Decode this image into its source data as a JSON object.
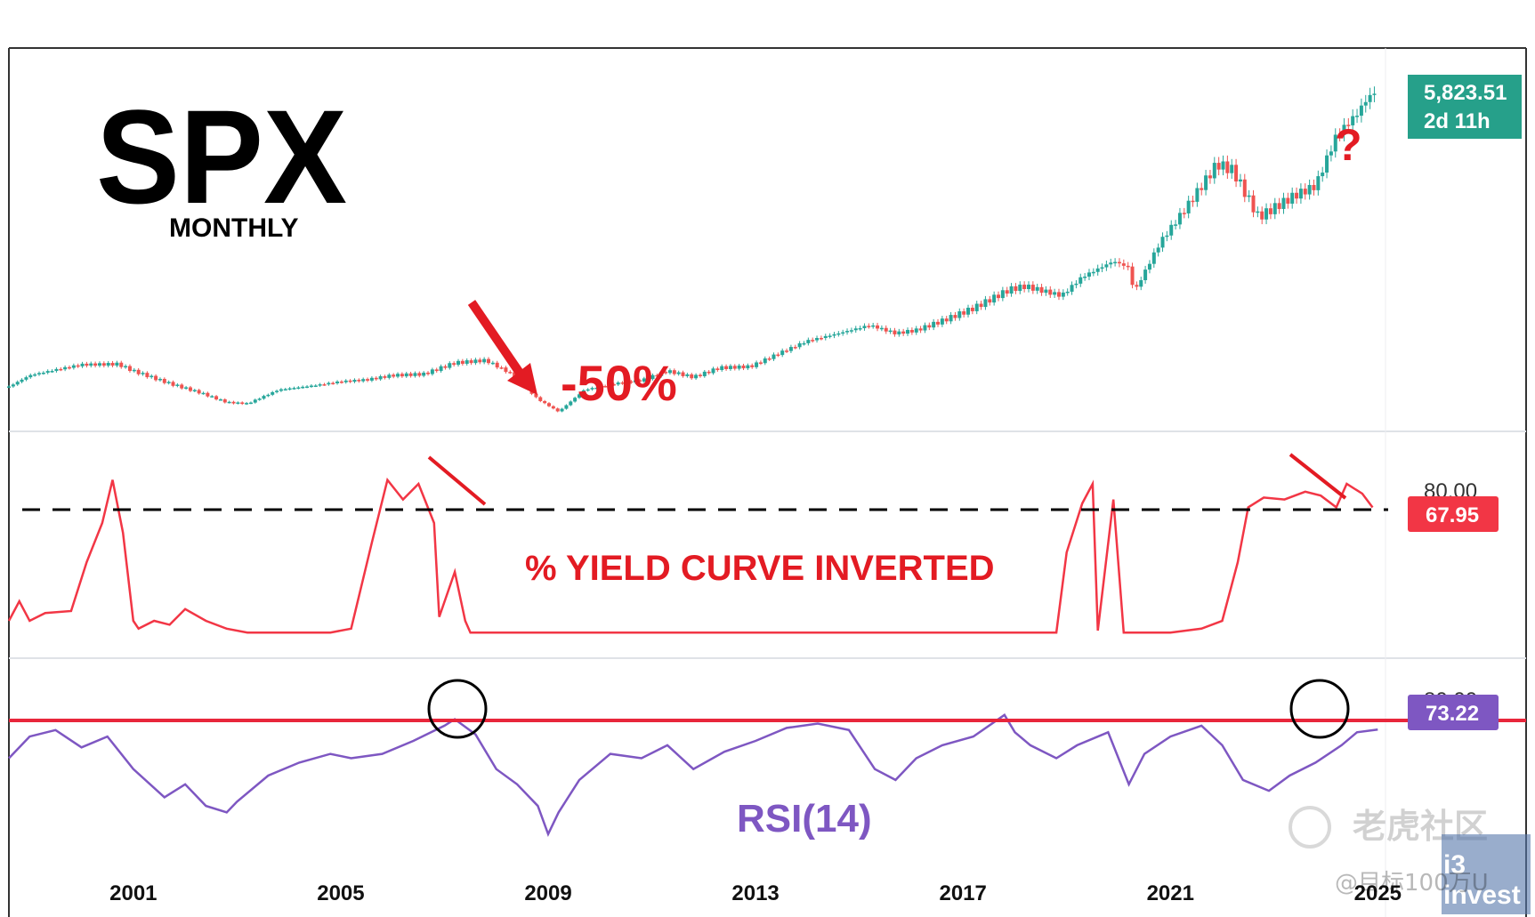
{
  "chart_data": [
    {
      "type": "candlestick",
      "title": "SPX",
      "subtitle": "MONTHLY",
      "annotation_drop": "-50%",
      "annotation_question": "?",
      "last_price": "5,823.51",
      "countdown": "2d 11h",
      "x_ticks": [
        "2001",
        "2005",
        "2009",
        "2013",
        "2017",
        "2021",
        "2025"
      ],
      "x_range": [
        1998.6,
        2025.2
      ],
      "ylim": [
        600,
        6200
      ],
      "series": [
        {
          "x": [
            1998.6,
            1999.0,
            1999.5,
            2000.0,
            2000.7,
            2001.0,
            2001.7,
            2002.3,
            2002.8,
            2003.2,
            2003.8,
            2004.5,
            2005.0,
            2005.5,
            2006.0,
            2006.6,
            2007.2,
            2007.8,
            2008.3,
            2008.8,
            2009.2,
            2009.7,
            2010.3,
            2010.8,
            2011.3,
            2011.8,
            2012.3,
            2012.9,
            2013.5,
            2014.0,
            2014.6,
            2015.2,
            2015.7,
            2016.1,
            2016.6,
            2017.2,
            2017.9,
            2018.2,
            2018.9,
            2019.3,
            2019.9,
            2020.2,
            2020.3,
            2020.8,
            2021.3,
            2021.9,
            2022.2,
            2022.7,
            2022.9,
            2023.4,
            2023.8,
            2024.2,
            2024.6,
            2024.8,
            2025.0
          ],
          "values": [
            1100,
            1280,
            1370,
            1450,
            1460,
            1350,
            1150,
            1000,
            850,
            830,
            1050,
            1120,
            1180,
            1210,
            1280,
            1300,
            1480,
            1520,
            1300,
            900,
            700,
            1050,
            1150,
            1200,
            1350,
            1250,
            1400,
            1420,
            1650,
            1830,
            1950,
            2080,
            1950,
            2000,
            2150,
            2350,
            2650,
            2700,
            2550,
            2850,
            3100,
            3000,
            2600,
            3400,
            3950,
            4650,
            4550,
            3800,
            3900,
            4150,
            4300,
            5100,
            5450,
            5700,
            5823.51
          ]
        }
      ]
    },
    {
      "type": "line",
      "series_label": "% YIELD CURVE INVERTED",
      "current_value": "67.95",
      "level_label": "80.00",
      "reference_level": 70,
      "ylim": [
        0,
        100
      ],
      "series": [
        {
          "x": [
            1998.6,
            1998.8,
            1999.0,
            1999.3,
            1999.8,
            2000.1,
            2000.4,
            2000.6,
            2000.8,
            2001.0,
            2001.1,
            2001.4,
            2001.7,
            2002.0,
            2002.4,
            2002.8,
            2003.2,
            2003.6,
            2004.0,
            2004.4,
            2004.8,
            2005.2,
            2005.6,
            2005.9,
            2006.2,
            2006.5,
            2006.8,
            2006.9,
            2007.2,
            2007.4,
            2007.5,
            2007.7,
            2007.9,
            2008.1,
            2008.3,
            2008.6,
            2009.0,
            2012.0,
            2016.0,
            2018.8,
            2019.0,
            2019.3,
            2019.5,
            2019.6,
            2019.9,
            2020.1,
            2020.2,
            2020.3,
            2021.0,
            2021.6,
            2022.0,
            2022.3,
            2022.5,
            2022.8,
            2023.2,
            2023.6,
            2023.9,
            2024.2,
            2024.4,
            2024.7,
            2024.9
          ],
          "values": [
            10,
            20,
            10,
            14,
            15,
            40,
            60,
            82,
            55,
            10,
            6,
            10,
            8,
            16,
            10,
            6,
            4,
            4,
            4,
            4,
            4,
            6,
            50,
            82,
            72,
            80,
            60,
            12,
            35,
            10,
            4,
            4,
            4,
            4,
            4,
            4,
            4,
            4,
            4,
            4,
            45,
            70,
            80,
            5,
            72,
            4,
            4,
            4,
            4,
            6,
            10,
            40,
            68,
            73,
            72,
            76,
            74,
            68,
            80,
            75,
            67.95
          ]
        }
      ]
    },
    {
      "type": "line",
      "series_label": "RSI(14)",
      "current_value": "73.22",
      "level_label": "80.00",
      "reference_level": 70,
      "ylim": [
        20,
        100
      ],
      "series": [
        {
          "x": [
            1998.6,
            1999.0,
            1999.5,
            2000.0,
            2000.5,
            2001.0,
            2001.6,
            2002.0,
            2002.4,
            2002.8,
            2003.0,
            2003.6,
            2004.2,
            2004.8,
            2005.2,
            2005.8,
            2006.4,
            2007.0,
            2007.2,
            2007.6,
            2008.0,
            2008.4,
            2008.8,
            2009.0,
            2009.2,
            2009.6,
            2010.2,
            2010.8,
            2011.3,
            2011.8,
            2012.4,
            2013.0,
            2013.6,
            2014.2,
            2014.8,
            2015.3,
            2015.7,
            2016.1,
            2016.6,
            2017.2,
            2017.8,
            2018.0,
            2018.3,
            2018.8,
            2019.2,
            2019.8,
            2020.2,
            2020.5,
            2021.0,
            2021.6,
            2022.0,
            2022.4,
            2022.9,
            2023.3,
            2023.8,
            2024.3,
            2024.6,
            2025.0
          ],
          "values": [
            60,
            70,
            73,
            65,
            70,
            55,
            42,
            48,
            38,
            35,
            40,
            52,
            58,
            62,
            60,
            62,
            68,
            75,
            78,
            71,
            55,
            48,
            38,
            25,
            35,
            50,
            62,
            60,
            66,
            55,
            63,
            68,
            74,
            76,
            73,
            55,
            50,
            60,
            66,
            70,
            80,
            72,
            66,
            60,
            66,
            72,
            48,
            62,
            70,
            75,
            66,
            50,
            45,
            52,
            58,
            66,
            72,
            73.22
          ]
        }
      ]
    }
  ],
  "watermark": {
    "brand": "老虎社区",
    "user": "@目标100万U",
    "logo_top": "i3",
    "logo_bottom": "invest"
  }
}
